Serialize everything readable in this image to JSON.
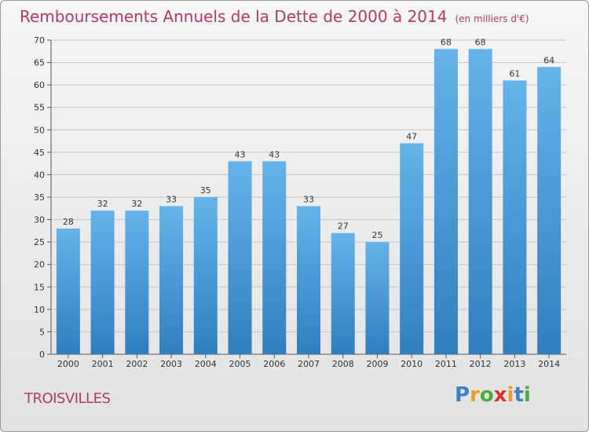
{
  "title": "Remboursements Annuels de la Dette de 2000 à 2014",
  "unit": "(en milliers d'€)",
  "commune": "TROISVILLES",
  "logo": {
    "letters": [
      "P",
      "r",
      "o",
      "x",
      "i",
      "t",
      "i"
    ],
    "colors": [
      "#3a7fc8",
      "#e8a01e",
      "#4cae3c",
      "#d9312b",
      "#e8a01e",
      "#3a7fc8",
      "#4cae3c"
    ]
  },
  "colors": {
    "bar_light": "#66b3ea",
    "bar_dark": "#2f7fbf",
    "title": "#b03a6a",
    "grid": "#c4c4c4"
  },
  "chart_data": {
    "type": "bar",
    "title": "Remboursements Annuels de la Dette de 2000 à 2014",
    "xlabel": "",
    "ylabel": "",
    "categories": [
      "2000",
      "2001",
      "2002",
      "2003",
      "2004",
      "2005",
      "2006",
      "2007",
      "2008",
      "2009",
      "2010",
      "2011",
      "2012",
      "2013",
      "2014"
    ],
    "values": [
      28,
      32,
      32,
      33,
      35,
      43,
      43,
      33,
      27,
      25,
      47,
      68,
      68,
      61,
      64
    ],
    "ylim": [
      0,
      70
    ],
    "yticks": [
      0,
      5,
      10,
      15,
      20,
      25,
      30,
      35,
      40,
      45,
      50,
      55,
      60,
      65,
      70
    ],
    "grid": true
  }
}
